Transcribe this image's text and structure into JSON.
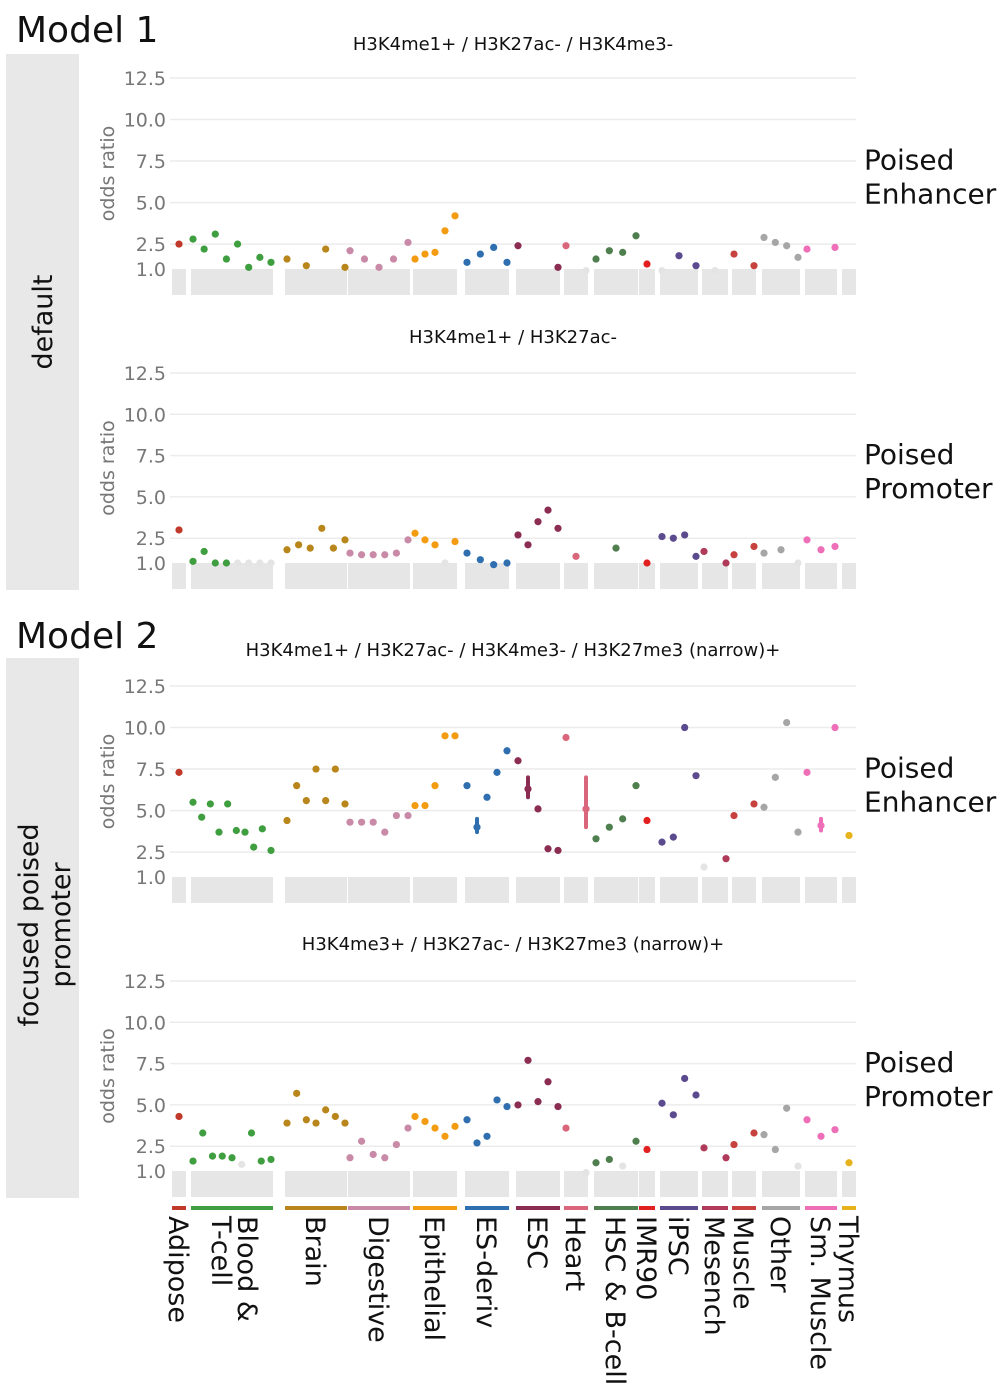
{
  "models": [
    {
      "title": "Model 1",
      "strip": "default"
    },
    {
      "title": "Model 2",
      "strip": "focused poised\npromoter"
    }
  ],
  "chart_data": [
    {
      "type": "scatter",
      "model": "Model 1",
      "title": "H3K4me1+ / H3K27ac- / H3K4me3-",
      "side_label": "Poised\nEnhancer",
      "ylabel": "odds ratio",
      "yticks": [
        "12.5",
        "10.0",
        "7.5",
        "5.0",
        "2.5",
        "1.0"
      ],
      "ylim": [
        1,
        13.2
      ],
      "categories": [
        "Adipose",
        "Blood & T-cell",
        "Brain",
        "Digestive",
        "Epithelial",
        "ES-deriv",
        "ESC",
        "Heart",
        "HSC & B-cell",
        "IMR90",
        "iPSC",
        "Mesench",
        "Muscle",
        "Other",
        "Sm. Muscle",
        "Thymus"
      ],
      "series": [
        {
          "category": "Adipose",
          "values": [
            2.5
          ]
        },
        {
          "category": "Blood & T-cell",
          "values": [
            2.8,
            2.2,
            3.1,
            1.6,
            2.5,
            1.1,
            1.7,
            1.4
          ],
          "faint": [
            0,
            0,
            0,
            0,
            0,
            0,
            0,
            0
          ]
        },
        {
          "category": "Brain",
          "values": [
            1.6,
            1.2,
            2.2,
            1.1
          ],
          "faint": [
            0,
            0,
            0,
            0
          ]
        },
        {
          "category": "Digestive",
          "values": [
            2.1,
            1.6,
            1.1,
            1.6,
            2.6
          ],
          "faint": [
            0,
            0,
            0,
            0,
            0
          ]
        },
        {
          "category": "Epithelial",
          "values": [
            1.6,
            1.9,
            2.0,
            3.3,
            4.2
          ]
        },
        {
          "category": "ES-deriv",
          "values": [
            1.4,
            1.9,
            2.3,
            1.4
          ]
        },
        {
          "category": "ESC",
          "values": [
            2.4,
            1.1
          ]
        },
        {
          "category": "Heart",
          "values": [
            2.4,
            0.9
          ],
          "faint": [
            0,
            1
          ]
        },
        {
          "category": "HSC & B-cell",
          "values": [
            1.6,
            2.1,
            2.0,
            3.0
          ]
        },
        {
          "category": "IMR90",
          "values": [
            1.3
          ]
        },
        {
          "category": "iPSC",
          "values": [
            0.9,
            1.8,
            1.2
          ],
          "faint": [
            1,
            0,
            0
          ]
        },
        {
          "category": "Mesench",
          "values": [
            0.9
          ],
          "faint": [
            1
          ]
        },
        {
          "category": "Muscle",
          "values": [
            1.9,
            1.2
          ]
        },
        {
          "category": "Other",
          "values": [
            2.9,
            2.6,
            2.4,
            1.7
          ]
        },
        {
          "category": "Sm. Muscle",
          "values": [
            2.2,
            2.3
          ]
        },
        {
          "category": "Thymus",
          "values": []
        }
      ]
    },
    {
      "type": "scatter",
      "model": "Model 1",
      "title": "H3K4me1+ / H3K27ac-",
      "side_label": "Poised\nPromoter",
      "ylabel": "odds ratio",
      "yticks": [
        "12.5",
        "10.0",
        "7.5",
        "5.0",
        "2.5",
        "1.0"
      ],
      "ylim": [
        1,
        13.2
      ],
      "categories": [
        "Adipose",
        "Blood & T-cell",
        "Brain",
        "Digestive",
        "Epithelial",
        "ES-deriv",
        "ESC",
        "Heart",
        "HSC & B-cell",
        "IMR90",
        "iPSC",
        "Mesench",
        "Muscle",
        "Other",
        "Sm. Muscle",
        "Thymus"
      ],
      "series": [
        {
          "category": "Adipose",
          "values": [
            3.0
          ]
        },
        {
          "category": "Blood & T-cell",
          "values": [
            1.1,
            1.7,
            1.0,
            1.0,
            1.0,
            1.0,
            1.0,
            1.0
          ],
          "faint": [
            0,
            0,
            0,
            0,
            1,
            1,
            1,
            1
          ]
        },
        {
          "category": "Brain",
          "values": [
            1.8,
            2.1,
            1.9,
            3.1,
            1.9,
            2.4
          ]
        },
        {
          "category": "Digestive",
          "values": [
            1.6,
            1.5,
            1.5,
            1.5,
            1.6,
            2.4
          ]
        },
        {
          "category": "Epithelial",
          "values": [
            2.8,
            2.4,
            2.1,
            1.0,
            2.3
          ],
          "faint": [
            0,
            0,
            0,
            1,
            0
          ]
        },
        {
          "category": "ES-deriv",
          "values": [
            1.6,
            1.2,
            0.9,
            1.0
          ]
        },
        {
          "category": "ESC",
          "values": [
            2.7,
            2.1,
            3.5,
            4.2,
            3.1
          ]
        },
        {
          "category": "Heart",
          "values": [
            1.4
          ]
        },
        {
          "category": "HSC & B-cell",
          "values": [
            1.9
          ]
        },
        {
          "category": "IMR90",
          "values": [
            1.0
          ]
        },
        {
          "category": "iPSC",
          "values": [
            2.6,
            2.5,
            2.7,
            1.4
          ]
        },
        {
          "category": "Mesench",
          "values": [
            1.7,
            1.0
          ]
        },
        {
          "category": "Muscle",
          "values": [
            1.5,
            2.0
          ]
        },
        {
          "category": "Other",
          "values": [
            1.6,
            1.8,
            1.0
          ],
          "faint": [
            0,
            0,
            1
          ]
        },
        {
          "category": "Sm. Muscle",
          "values": [
            2.4,
            1.8,
            2.0
          ]
        },
        {
          "category": "Thymus",
          "values": []
        }
      ]
    },
    {
      "type": "scatter",
      "model": "Model 2",
      "title": "H3K4me1+ / H3K27ac- / H3K4me3- / H3K27me3 (narrow)+",
      "side_label": "Poised\nEnhancer",
      "ylabel": "odds ratio",
      "yticks": [
        "12.5",
        "10.0",
        "7.5",
        "5.0",
        "2.5",
        "1.0"
      ],
      "ylim": [
        1,
        13.2
      ],
      "categories": [
        "Adipose",
        "Blood & T-cell",
        "Brain",
        "Digestive",
        "Epithelial",
        "ES-deriv",
        "ESC",
        "Heart",
        "HSC & B-cell",
        "IMR90",
        "iPSC",
        "Mesench",
        "Muscle",
        "Other",
        "Sm. Muscle",
        "Thymus"
      ],
      "series": [
        {
          "category": "Adipose",
          "values": [
            7.3
          ]
        },
        {
          "category": "Blood & T-cell",
          "values": [
            5.5,
            4.6,
            5.4,
            3.7,
            5.4,
            3.8,
            3.7,
            2.8,
            3.9,
            2.6
          ]
        },
        {
          "category": "Brain",
          "values": [
            4.4,
            6.5,
            5.6,
            7.5,
            5.6,
            7.5,
            5.4
          ]
        },
        {
          "category": "Digestive",
          "values": [
            4.3,
            4.3,
            4.3,
            3.7,
            4.7,
            4.7
          ]
        },
        {
          "category": "Epithelial",
          "values": [
            5.3,
            5.3,
            6.5,
            9.5,
            9.5
          ]
        },
        {
          "category": "ES-deriv",
          "values": [
            6.5,
            4.0,
            5.8,
            7.3,
            8.6
          ],
          "error_low": [
            null,
            3.7,
            null,
            null,
            null
          ],
          "error_high": [
            null,
            4.5,
            null,
            null,
            null
          ]
        },
        {
          "category": "ESC",
          "values": [
            8.0,
            6.3,
            5.1,
            2.7,
            2.6
          ],
          "error_low": [
            null,
            5.8,
            null,
            null,
            null
          ],
          "error_high": [
            null,
            7.0,
            null,
            null,
            null
          ]
        },
        {
          "category": "Heart",
          "values": [
            9.4,
            5.1
          ],
          "error_low": [
            null,
            4.0
          ],
          "error_high": [
            null,
            7.0
          ]
        },
        {
          "category": "HSC & B-cell",
          "values": [
            3.3,
            4.0,
            4.5,
            6.5
          ]
        },
        {
          "category": "IMR90",
          "values": [
            4.4
          ]
        },
        {
          "category": "iPSC",
          "values": [
            3.1,
            3.4,
            10.0,
            7.1
          ]
        },
        {
          "category": "Mesench",
          "values": [
            1.6,
            2.1
          ],
          "faint": [
            1,
            0
          ]
        },
        {
          "category": "Muscle",
          "values": [
            4.7,
            5.4
          ]
        },
        {
          "category": "Other",
          "values": [
            5.2,
            7.0,
            10.3,
            3.7
          ]
        },
        {
          "category": "Sm. Muscle",
          "values": [
            7.3,
            4.1,
            10.0
          ],
          "error_low": [
            null,
            3.8,
            null
          ],
          "error_high": [
            null,
            4.5,
            null
          ]
        },
        {
          "category": "Thymus",
          "values": [
            3.5
          ]
        }
      ]
    },
    {
      "type": "scatter",
      "model": "Model 2",
      "title": "H3K4me3+ / H3K27ac-  / H3K27me3 (narrow)+",
      "side_label": "Poised\nPromoter",
      "ylabel": "odds ratio",
      "yticks": [
        "12.5",
        "10.0",
        "7.5",
        "5.0",
        "2.5",
        "1.0"
      ],
      "ylim": [
        1,
        13.2
      ],
      "categories": [
        "Adipose",
        "Blood & T-cell",
        "Brain",
        "Digestive",
        "Epithelial",
        "ES-deriv",
        "ESC",
        "Heart",
        "HSC & B-cell",
        "IMR90",
        "iPSC",
        "Mesench",
        "Muscle",
        "Other",
        "Sm. Muscle",
        "Thymus"
      ],
      "series": [
        {
          "category": "Adipose",
          "values": [
            4.3
          ]
        },
        {
          "category": "Blood & T-cell",
          "values": [
            1.6,
            3.3,
            1.9,
            1.9,
            1.8,
            1.4,
            3.3,
            1.6,
            1.7
          ],
          "faint": [
            0,
            0,
            0,
            0,
            0,
            1,
            0,
            0,
            0
          ]
        },
        {
          "category": "Brain",
          "values": [
            3.9,
            5.7,
            4.1,
            3.9,
            4.7,
            4.3,
            3.9
          ]
        },
        {
          "category": "Digestive",
          "values": [
            1.8,
            2.8,
            2.0,
            1.8,
            2.6,
            3.6
          ]
        },
        {
          "category": "Epithelial",
          "values": [
            4.3,
            4.0,
            3.6,
            3.1,
            3.7
          ]
        },
        {
          "category": "ES-deriv",
          "values": [
            4.1,
            2.7,
            3.1,
            5.3,
            4.9
          ]
        },
        {
          "category": "ESC",
          "values": [
            5.0,
            7.7,
            5.2,
            6.4,
            4.9
          ]
        },
        {
          "category": "Heart",
          "values": [
            3.6,
            0.9
          ],
          "faint": [
            0,
            1
          ]
        },
        {
          "category": "HSC & B-cell",
          "values": [
            1.5,
            1.7,
            1.3,
            2.8
          ],
          "faint": [
            0,
            0,
            1,
            0
          ]
        },
        {
          "category": "IMR90",
          "values": [
            2.3
          ]
        },
        {
          "category": "iPSC",
          "values": [
            5.1,
            4.4,
            6.6,
            5.6
          ]
        },
        {
          "category": "Mesench",
          "values": [
            2.4,
            1.8
          ]
        },
        {
          "category": "Muscle",
          "values": [
            2.6,
            3.3
          ]
        },
        {
          "category": "Other",
          "values": [
            3.2,
            2.3,
            4.8,
            1.3
          ],
          "faint": [
            0,
            0,
            0,
            1
          ]
        },
        {
          "category": "Sm. Muscle",
          "values": [
            4.1,
            3.1,
            3.5
          ]
        },
        {
          "category": "Thymus",
          "values": [
            1.5
          ]
        }
      ]
    }
  ],
  "category_colors": {
    "Adipose": "#c0392b",
    "Blood & T-cell": "#3f9e3f",
    "Brain": "#b8861b",
    "Digestive": "#c98aa8",
    "Epithelial": "#f39c12",
    "ES-deriv": "#2f6fb0",
    "ESC": "#8b2d52",
    "Heart": "#d9667a",
    "HSC & B-cell": "#4f7f4f",
    "IMR90": "#e32020",
    "iPSC": "#5b4a8e",
    "Mesench": "#b03a5a",
    "Muscle": "#c7423e",
    "Other": "#a6a6a6",
    "Sm. Muscle": "#ee6fb8",
    "Thymus": "#e6b31a"
  },
  "x_labels": [
    {
      "category": "Adipose",
      "lines": [
        "Adipose"
      ]
    },
    {
      "category": "Blood & T-cell",
      "lines": [
        "Blood &",
        "T-cell"
      ]
    },
    {
      "category": "Brain",
      "lines": [
        "Brain"
      ]
    },
    {
      "category": "Digestive",
      "lines": [
        "Digestive"
      ]
    },
    {
      "category": "Epithelial",
      "lines": [
        "Epithelial"
      ]
    },
    {
      "category": "ES-deriv",
      "lines": [
        "ES-deriv"
      ]
    },
    {
      "category": "ESC",
      "lines": [
        "ESC"
      ]
    },
    {
      "category": "Heart",
      "lines": [
        "Heart"
      ]
    },
    {
      "category": "HSC & B-cell",
      "lines": [
        "HSC & B-cell"
      ]
    },
    {
      "category": "IMR90",
      "lines": [
        "IMR90"
      ]
    },
    {
      "category": "iPSC",
      "lines": [
        "iPSC"
      ]
    },
    {
      "category": "Mesench",
      "lines": [
        "Mesench"
      ]
    },
    {
      "category": "Muscle",
      "lines": [
        "Muscle"
      ]
    },
    {
      "category": "Other",
      "lines": [
        "Other"
      ]
    },
    {
      "category": "Sm. Muscle",
      "lines": [
        "Sm. Muscle"
      ]
    },
    {
      "category": "Thymus",
      "lines": [
        "Thymus"
      ]
    }
  ]
}
